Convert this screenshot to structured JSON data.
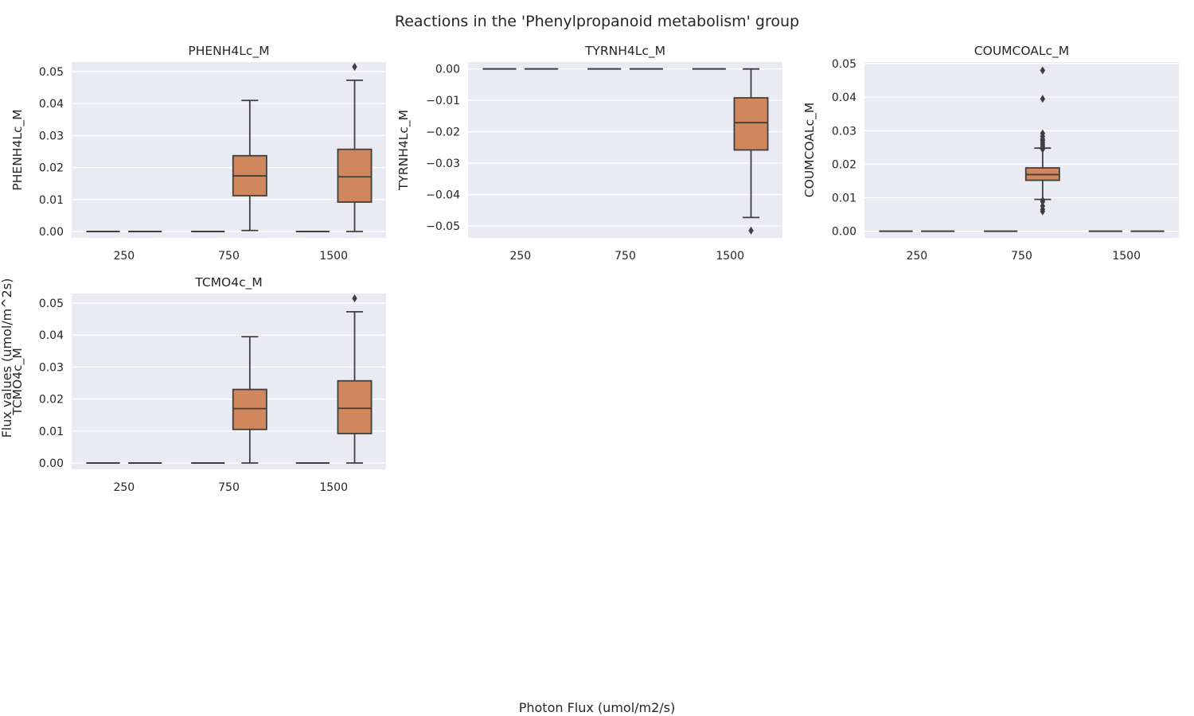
{
  "figure": {
    "suptitle": "Reactions in the 'Phenylpropanoid metabolism' group",
    "supxlabel": "Photon Flux (umol/m2/s)",
    "supylabel": "Flux values (umol/m^2s)"
  },
  "colors": {
    "axes_bg": "#eaeaf2",
    "grid": "#ffffff",
    "box_fill": "#d0875c",
    "line": "#3f3f3f",
    "text": "#262626"
  },
  "chart_data": [
    {
      "type": "box",
      "title": "PHENH4Lc_M",
      "ylabel": "PHENH4Lc_M",
      "categories": [
        "250",
        "750",
        "1500"
      ],
      "ylim": [
        -0.002,
        0.053
      ],
      "yticks": [
        0.0,
        0.01,
        0.02,
        0.03,
        0.04,
        0.05
      ],
      "ytick_labels": [
        "0.00",
        "0.01",
        "0.02",
        "0.03",
        "0.04",
        "0.05"
      ],
      "groups": [
        {
          "category": "250",
          "subgroups": [
            {
              "q1": 0,
              "median": 0,
              "q3": 0,
              "whisker_low": 0,
              "whisker_high": 0,
              "outliers": []
            },
            {
              "q1": 0,
              "median": 0,
              "q3": 0,
              "whisker_low": 0,
              "whisker_high": 0,
              "outliers": []
            }
          ]
        },
        {
          "category": "750",
          "subgroups": [
            {
              "q1": 0,
              "median": 0,
              "q3": 0,
              "whisker_low": 0,
              "whisker_high": 0,
              "outliers": []
            },
            {
              "q1": 0.0112,
              "median": 0.0174,
              "q3": 0.0237,
              "whisker_low": 0.0003,
              "whisker_high": 0.041,
              "outliers": []
            }
          ]
        },
        {
          "category": "1500",
          "subgroups": [
            {
              "q1": 0,
              "median": 0,
              "q3": 0,
              "whisker_low": 0,
              "whisker_high": 0,
              "outliers": []
            },
            {
              "q1": 0.0092,
              "median": 0.0171,
              "q3": 0.0257,
              "whisker_low": 0.0,
              "whisker_high": 0.0473,
              "outliers": [
                0.0515
              ]
            }
          ]
        }
      ]
    },
    {
      "type": "box",
      "title": "TYRNH4Lc_M",
      "ylabel": "TYRNH4Lc_M",
      "categories": [
        "250",
        "750",
        "1500"
      ],
      "ylim": [
        -0.0538,
        0.0022
      ],
      "yticks": [
        0.0,
        -0.01,
        -0.02,
        -0.03,
        -0.04,
        -0.05
      ],
      "ytick_labels": [
        "0.00",
        "−0.01",
        "−0.02",
        "−0.03",
        "−0.04",
        "−0.05"
      ],
      "groups": [
        {
          "category": "250",
          "subgroups": [
            {
              "q1": 0,
              "median": 0,
              "q3": 0,
              "whisker_low": 0,
              "whisker_high": 0,
              "outliers": []
            },
            {
              "q1": 0,
              "median": 0,
              "q3": 0,
              "whisker_low": 0,
              "whisker_high": 0,
              "outliers": []
            }
          ]
        },
        {
          "category": "750",
          "subgroups": [
            {
              "q1": 0,
              "median": 0,
              "q3": 0,
              "whisker_low": 0,
              "whisker_high": 0,
              "outliers": []
            },
            {
              "q1": 0,
              "median": 0,
              "q3": 0,
              "whisker_low": 0,
              "whisker_high": 0,
              "outliers": []
            }
          ]
        },
        {
          "category": "1500",
          "subgroups": [
            {
              "q1": 0,
              "median": 0,
              "q3": 0,
              "whisker_low": 0,
              "whisker_high": 0,
              "outliers": []
            },
            {
              "q1": -0.0258,
              "median": -0.0171,
              "q3": -0.0092,
              "whisker_low": -0.0473,
              "whisker_high": 0.0,
              "outliers": [
                -0.0515
              ]
            }
          ]
        }
      ]
    },
    {
      "type": "box",
      "title": "COUMCOALc_M",
      "ylabel": "COUMCOALc_M",
      "categories": [
        "250",
        "750",
        "1500"
      ],
      "ylim": [
        -0.002,
        0.0505
      ],
      "yticks": [
        0.0,
        0.01,
        0.02,
        0.03,
        0.04,
        0.05
      ],
      "ytick_labels": [
        "0.00",
        "0.01",
        "0.02",
        "0.03",
        "0.04",
        "0.05"
      ],
      "groups": [
        {
          "category": "250",
          "subgroups": [
            {
              "q1": 0,
              "median": 0,
              "q3": 0,
              "whisker_low": 0,
              "whisker_high": 0,
              "outliers": []
            },
            {
              "q1": 0,
              "median": 0,
              "q3": 0,
              "whisker_low": 0,
              "whisker_high": 0,
              "outliers": []
            }
          ]
        },
        {
          "category": "750",
          "subgroups": [
            {
              "q1": 0,
              "median": 0,
              "q3": 0,
              "whisker_low": 0,
              "whisker_high": 0,
              "outliers": []
            },
            {
              "q1": 0.0152,
              "median": 0.0169,
              "q3": 0.0189,
              "whisker_low": 0.0095,
              "whisker_high": 0.0248,
              "outliers": [
                0.0059,
                0.0065,
                0.0075,
                0.0088,
                0.0092,
                0.0245,
                0.0252,
                0.0258,
                0.0264,
                0.027,
                0.0275,
                0.0283,
                0.0292,
                0.0395,
                0.048
              ]
            }
          ]
        },
        {
          "category": "1500",
          "subgroups": [
            {
              "q1": 0,
              "median": 0,
              "q3": 0,
              "whisker_low": 0,
              "whisker_high": 0,
              "outliers": []
            },
            {
              "q1": 0,
              "median": 0,
              "q3": 0,
              "whisker_low": 0,
              "whisker_high": 0,
              "outliers": []
            }
          ]
        }
      ]
    },
    {
      "type": "box",
      "title": "TCMO4c_M",
      "ylabel": "TCMO4c_M",
      "categories": [
        "250",
        "750",
        "1500"
      ],
      "ylim": [
        -0.002,
        0.053
      ],
      "yticks": [
        0.0,
        0.01,
        0.02,
        0.03,
        0.04,
        0.05
      ],
      "ytick_labels": [
        "0.00",
        "0.01",
        "0.02",
        "0.03",
        "0.04",
        "0.05"
      ],
      "groups": [
        {
          "category": "250",
          "subgroups": [
            {
              "q1": 0,
              "median": 0,
              "q3": 0,
              "whisker_low": 0,
              "whisker_high": 0,
              "outliers": []
            },
            {
              "q1": 0,
              "median": 0,
              "q3": 0,
              "whisker_low": 0,
              "whisker_high": 0,
              "outliers": []
            }
          ]
        },
        {
          "category": "750",
          "subgroups": [
            {
              "q1": 0,
              "median": 0,
              "q3": 0,
              "whisker_low": 0,
              "whisker_high": 0,
              "outliers": []
            },
            {
              "q1": 0.0105,
              "median": 0.017,
              "q3": 0.023,
              "whisker_low": 0.0,
              "whisker_high": 0.0395,
              "outliers": []
            }
          ]
        },
        {
          "category": "1500",
          "subgroups": [
            {
              "q1": 0,
              "median": 0,
              "q3": 0,
              "whisker_low": 0,
              "whisker_high": 0,
              "outliers": []
            },
            {
              "q1": 0.0092,
              "median": 0.0171,
              "q3": 0.0257,
              "whisker_low": 0.0,
              "whisker_high": 0.0473,
              "outliers": [
                0.0515
              ]
            }
          ]
        }
      ]
    }
  ]
}
